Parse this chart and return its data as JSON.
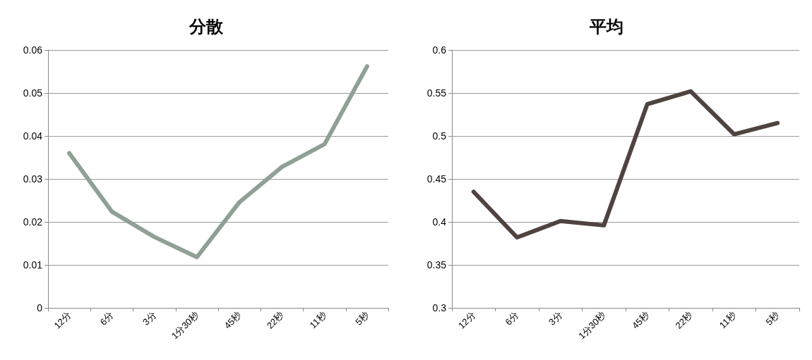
{
  "chart_data": [
    {
      "type": "line",
      "title": "分散",
      "categories": [
        "12分",
        "6分",
        "3分",
        "1分30秒",
        "45秒",
        "22秒",
        "11秒",
        "5秒"
      ],
      "series": [
        {
          "color": "#8fa095",
          "values": [
            0.036,
            0.0224,
            0.0165,
            0.0118,
            0.0246,
            0.0328,
            0.0381,
            0.0562
          ]
        }
      ],
      "ylim": [
        0,
        0.06
      ],
      "yticks": [
        0,
        0.01,
        0.02,
        0.03,
        0.04,
        0.05,
        0.06
      ],
      "grid": "y"
    },
    {
      "type": "line",
      "title": "平均",
      "categories": [
        "12分",
        "6分",
        "3分",
        "1分30秒",
        "45秒",
        "22秒",
        "11秒",
        "5秒"
      ],
      "series": [
        {
          "color": "#4f4340",
          "values": [
            0.435,
            0.382,
            0.401,
            0.396,
            0.537,
            0.552,
            0.502,
            0.515
          ]
        }
      ],
      "ylim": [
        0.3,
        0.6
      ],
      "yticks": [
        0.3,
        0.35,
        0.4,
        0.45,
        0.5,
        0.55,
        0.6
      ],
      "grid": "y"
    }
  ]
}
